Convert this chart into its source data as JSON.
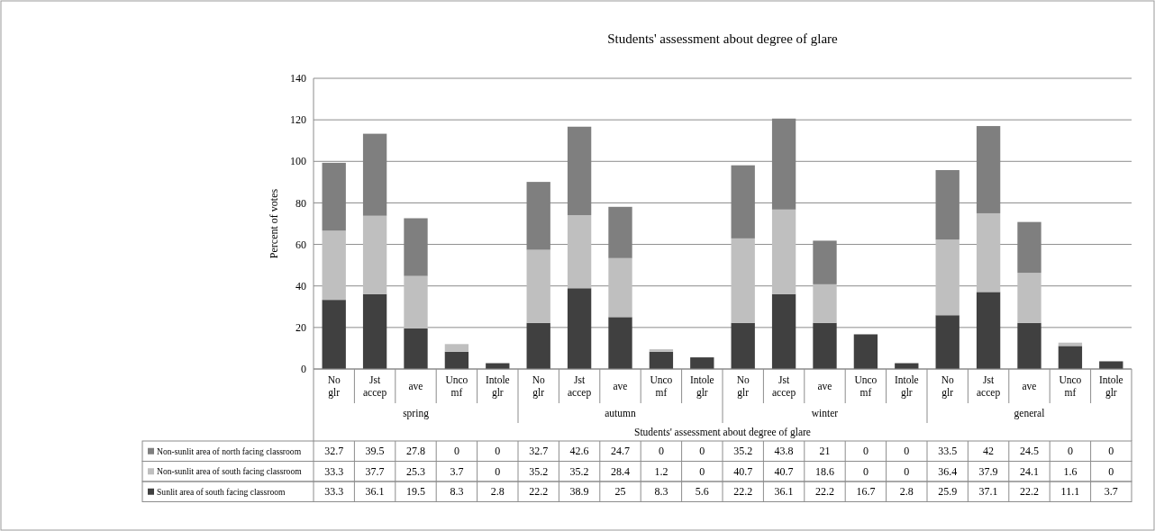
{
  "chart_data": {
    "type": "bar",
    "title": "Students' assessment about degree of glare",
    "xlabel": "Students' assessment about degree of glare",
    "ylabel": "Percent of votes",
    "categories": [
      "No glr",
      "Jst accep",
      "ave",
      "Unco mf",
      "Intole glr",
      "No glr",
      "Jst accep",
      "ave",
      "Unco mf",
      "Intole glr",
      "No glr",
      "Jst accep",
      "ave",
      "Unco mf",
      "Intole glr",
      "No glr",
      "Jst accep",
      "ave",
      "Unco mf",
      "Intole glr"
    ],
    "annotations": [
      "spring",
      "autumn",
      "winter",
      "general"
    ],
    "stacked": true,
    "series": [
      {
        "name": "Sunlit area of south facing classroom",
        "color": "#404040",
        "values": [
          33.3,
          36.1,
          19.5,
          8.3,
          2.8,
          22.2,
          38.9,
          25,
          8.3,
          5.6,
          22.2,
          36.1,
          22.2,
          16.7,
          2.8,
          25.9,
          37.1,
          22.2,
          11.1,
          3.7
        ]
      },
      {
        "name": "Non-sunlit area of south facing classroom",
        "color": "#bfbfbf",
        "values": [
          33.3,
          37.7,
          25.3,
          3.7,
          0,
          35.2,
          35.2,
          28.4,
          1.2,
          0,
          40.7,
          40.7,
          18.6,
          0,
          0,
          36.4,
          37.9,
          24.1,
          1.6,
          0
        ]
      },
      {
        "name": "Non-sunlit area of north facing classroom",
        "color": "#7f7f7f",
        "values": [
          32.7,
          39.5,
          27.8,
          0,
          0,
          32.7,
          42.6,
          24.7,
          0,
          0,
          35.2,
          43.8,
          21,
          0,
          0,
          33.5,
          42,
          24.5,
          0,
          0
        ]
      }
    ],
    "ylim": [
      0,
      140
    ],
    "yticks": [
      0,
      20,
      40,
      60,
      80,
      100,
      120,
      140
    ],
    "grid": "y",
    "legend": "bottom",
    "data_labels": true
  }
}
